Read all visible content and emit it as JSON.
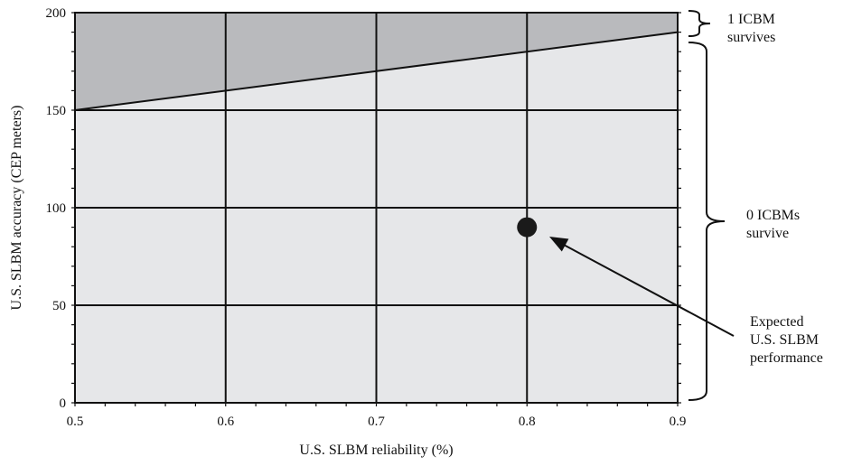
{
  "chart_data": {
    "type": "area",
    "title": "",
    "xlabel": "U.S. SLBM reliability (%)",
    "ylabel": "U.S. SLBM accuracy (CEP meters)",
    "xlim": [
      0.5,
      0.9
    ],
    "ylim": [
      0,
      200
    ],
    "xticks": [
      0.5,
      0.6,
      0.7,
      0.8,
      0.9
    ],
    "yticks": [
      0,
      50,
      100,
      150,
      200
    ],
    "xtick_labels": [
      "0.5",
      "0.6",
      "0.7",
      "0.8",
      "0.9"
    ],
    "ytick_labels": [
      "0",
      "50",
      "100",
      "150",
      "200"
    ],
    "grid": true,
    "boundary_line": {
      "x": [
        0.5,
        0.9
      ],
      "y": [
        150,
        190
      ]
    },
    "regions": [
      {
        "label_lines": [
          "1 ICBM",
          "survives"
        ],
        "side": "above-boundary",
        "color": "#b9babd"
      },
      {
        "label_lines": [
          "0 ICBMs",
          "survive"
        ],
        "side": "below-boundary",
        "color": "#e6e7e9"
      }
    ],
    "point": {
      "x": 0.8,
      "y": 90,
      "label_lines": [
        "Expected",
        "U.S. SLBM",
        "performance"
      ]
    }
  },
  "colors": {
    "region_above": "#b9babd",
    "region_below": "#e6e7e9",
    "line": "#111111"
  }
}
